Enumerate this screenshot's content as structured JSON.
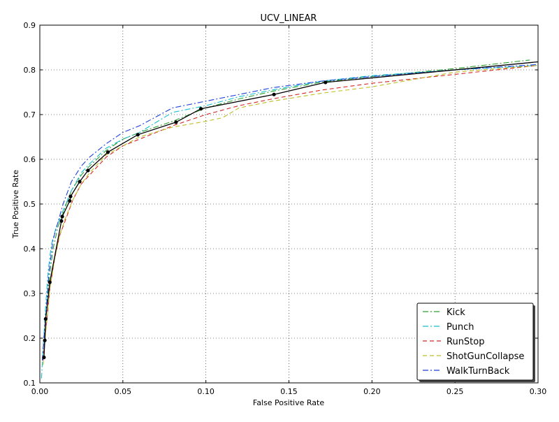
{
  "chart_data": {
    "type": "line",
    "title": "UCV_LINEAR",
    "xlabel": "False Positive Rate",
    "ylabel": "True Positive Rate",
    "xlim": [
      0.0,
      0.3
    ],
    "ylim": [
      0.1,
      0.9
    ],
    "xticks": [
      0.0,
      0.05,
      0.1,
      0.15,
      0.2,
      0.25,
      0.3
    ],
    "xtick_labels": [
      "0.00",
      "0.05",
      "0.10",
      "0.15",
      "0.20",
      "0.25",
      "0.30"
    ],
    "yticks": [
      0.1,
      0.2,
      0.3,
      0.4,
      0.5,
      0.6,
      0.7,
      0.8,
      0.9
    ],
    "ytick_labels": [
      "0.1",
      "0.2",
      "0.3",
      "0.4",
      "0.5",
      "0.6",
      "0.7",
      "0.8",
      "0.9"
    ],
    "grid": true,
    "legend_position": "lower-right",
    "series": [
      {
        "name": "Kick",
        "color": "#2ca02c",
        "dash": "dashdot",
        "x": [
          0.0015,
          0.0025,
          0.004,
          0.0055,
          0.008,
          0.011,
          0.014,
          0.019,
          0.025,
          0.03,
          0.04,
          0.05,
          0.06,
          0.08,
          0.1,
          0.12,
          0.14,
          0.17,
          0.2,
          0.25,
          0.295
        ],
        "y": [
          0.15,
          0.2,
          0.26,
          0.33,
          0.4,
          0.45,
          0.48,
          0.53,
          0.565,
          0.585,
          0.62,
          0.645,
          0.66,
          0.685,
          0.715,
          0.735,
          0.752,
          0.773,
          0.785,
          0.803,
          0.822
        ]
      },
      {
        "name": "Punch",
        "color": "#17becf",
        "dash": "dashdot",
        "x": [
          0.001,
          0.002,
          0.0035,
          0.005,
          0.007,
          0.01,
          0.014,
          0.019,
          0.025,
          0.03,
          0.04,
          0.05,
          0.06,
          0.08,
          0.1,
          0.12,
          0.14,
          0.17,
          0.2,
          0.25,
          0.3
        ],
        "y": [
          0.11,
          0.18,
          0.27,
          0.35,
          0.41,
          0.45,
          0.485,
          0.53,
          0.57,
          0.59,
          0.625,
          0.645,
          0.66,
          0.705,
          0.72,
          0.74,
          0.755,
          0.775,
          0.787,
          0.8,
          0.81
        ]
      },
      {
        "name": "RunStop",
        "color": "#d62728",
        "dash": "dashed",
        "x": [
          0.002,
          0.003,
          0.0045,
          0.006,
          0.009,
          0.012,
          0.015,
          0.02,
          0.025,
          0.03,
          0.04,
          0.05,
          0.06,
          0.08,
          0.1,
          0.12,
          0.14,
          0.17,
          0.2,
          0.25,
          0.3
        ],
        "y": [
          0.15,
          0.2,
          0.25,
          0.31,
          0.38,
          0.43,
          0.46,
          0.51,
          0.545,
          0.565,
          0.605,
          0.63,
          0.645,
          0.675,
          0.7,
          0.72,
          0.735,
          0.755,
          0.77,
          0.79,
          0.81
        ]
      },
      {
        "name": "ShotGunCollapse",
        "color": "#bcbd22",
        "dash": "dashed",
        "x": [
          0.002,
          0.003,
          0.0045,
          0.006,
          0.009,
          0.012,
          0.015,
          0.02,
          0.025,
          0.03,
          0.04,
          0.05,
          0.06,
          0.08,
          0.1,
          0.11,
          0.12,
          0.14,
          0.17,
          0.2,
          0.25,
          0.3
        ],
        "y": [
          0.14,
          0.19,
          0.25,
          0.31,
          0.38,
          0.43,
          0.465,
          0.51,
          0.545,
          0.57,
          0.61,
          0.63,
          0.65,
          0.672,
          0.685,
          0.693,
          0.715,
          0.73,
          0.748,
          0.762,
          0.795,
          0.81
        ]
      },
      {
        "name": "WalkTurnBack",
        "color": "#1f3fdd",
        "dash": "dashdot",
        "x": [
          0.0015,
          0.0025,
          0.004,
          0.0055,
          0.008,
          0.011,
          0.014,
          0.019,
          0.025,
          0.03,
          0.04,
          0.05,
          0.06,
          0.08,
          0.1,
          0.12,
          0.14,
          0.17,
          0.2,
          0.25,
          0.3
        ],
        "y": [
          0.15,
          0.2,
          0.27,
          0.35,
          0.42,
          0.46,
          0.5,
          0.55,
          0.585,
          0.605,
          0.635,
          0.66,
          0.675,
          0.715,
          0.73,
          0.745,
          0.76,
          0.775,
          0.785,
          0.8,
          0.812
        ]
      },
      {
        "name": "",
        "color": "#000000",
        "dash": "solid",
        "markers": true,
        "x": [
          0.0025,
          0.003,
          0.0035,
          0.006,
          0.013,
          0.0135,
          0.018,
          0.0185,
          0.024,
          0.029,
          0.041,
          0.059,
          0.082,
          0.097,
          0.141,
          0.172,
          0.3
        ],
        "y": [
          0.157,
          0.195,
          0.243,
          0.325,
          0.462,
          0.472,
          0.507,
          0.517,
          0.55,
          0.575,
          0.616,
          0.655,
          0.683,
          0.713,
          0.745,
          0.772,
          0.818
        ]
      }
    ]
  }
}
